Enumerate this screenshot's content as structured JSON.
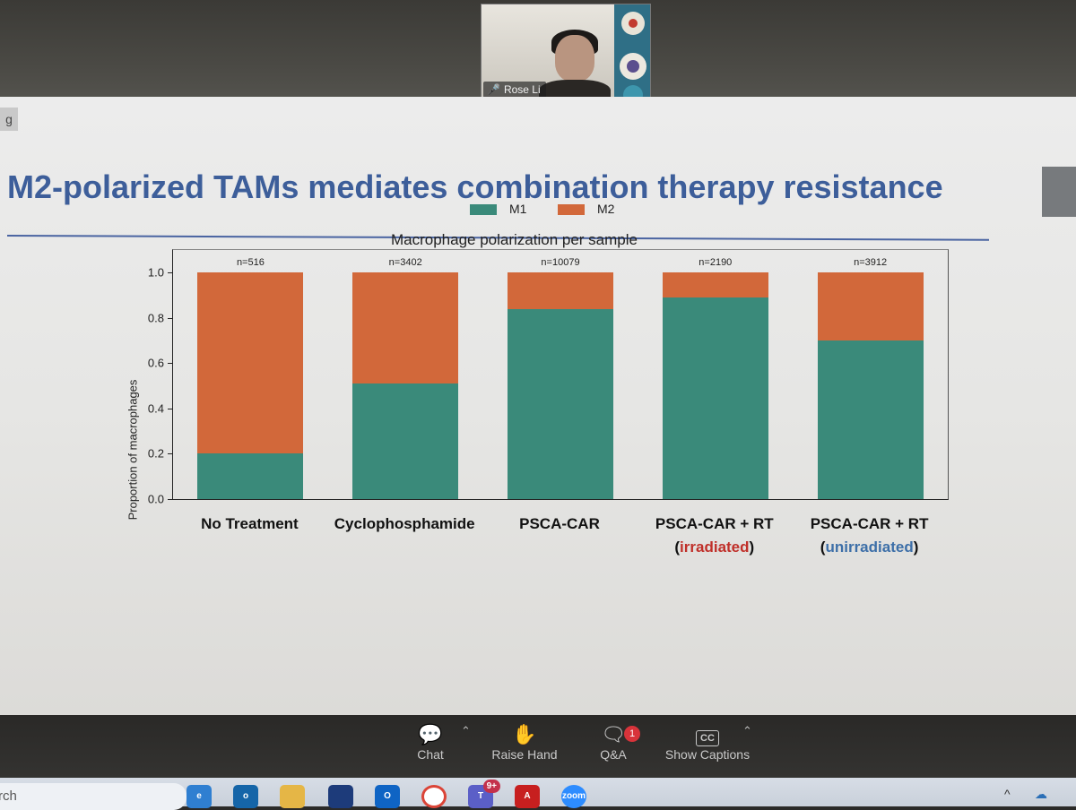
{
  "meeting": {
    "participant": {
      "name": "Rose Li",
      "icon": "mic-muted-icon"
    }
  },
  "slide": {
    "title": "M2-polarized TAMs mediates combination therapy resistance",
    "tab_label": "g",
    "categories": [
      {
        "main": "No Treatment",
        "sub": "",
        "paren": "",
        "sub_color": ""
      },
      {
        "main": "Cyclophosphamide",
        "sub": "",
        "paren": "",
        "sub_color": ""
      },
      {
        "main": "PSCA-CAR",
        "sub": "",
        "paren": "",
        "sub_color": ""
      },
      {
        "main": "PSCA-CAR + RT",
        "sub": "irradiated",
        "paren": "red",
        "sub_color": "#c0302a"
      },
      {
        "main": "PSCA-CAR + RT",
        "sub": "unirradiated",
        "paren": "blue",
        "sub_color": "#3d6fa8"
      }
    ]
  },
  "chart_data": {
    "type": "bar",
    "stacked": true,
    "title": "Macrophage polarization per sample",
    "xlabel": "",
    "ylabel": "Proportion of macrophages",
    "ylim": [
      0,
      1.1
    ],
    "yticks": [
      "0.0",
      "0.2",
      "0.4",
      "0.6",
      "0.8",
      "1.0"
    ],
    "categories": [
      "No Treatment",
      "Cyclophosphamide",
      "PSCA-CAR",
      "PSCA-CAR + RT (irradiated)",
      "PSCA-CAR + RT (unirradiated)"
    ],
    "series": [
      {
        "name": "M1",
        "color": "#3a8a7a",
        "values": [
          0.2,
          0.51,
          0.84,
          0.89,
          0.7
        ]
      },
      {
        "name": "M2",
        "color": "#d2683a",
        "values": [
          0.8,
          0.49,
          0.16,
          0.11,
          0.3
        ]
      }
    ],
    "annotations": [
      "n=516",
      "n=3402",
      "n=10079",
      "n=2190",
      "n=3912"
    ],
    "legend_position": "top-center"
  },
  "controls": {
    "chat": "Chat",
    "raise_hand": "Raise Hand",
    "qa": "Q&A",
    "qa_badge": "1",
    "captions": "Show Captions",
    "captions_icon_text": "CC"
  },
  "taskbar": {
    "search_placeholder": "rch",
    "teams_badge": "9+",
    "zoom_label": "zoom",
    "tray_chevron": "^"
  }
}
